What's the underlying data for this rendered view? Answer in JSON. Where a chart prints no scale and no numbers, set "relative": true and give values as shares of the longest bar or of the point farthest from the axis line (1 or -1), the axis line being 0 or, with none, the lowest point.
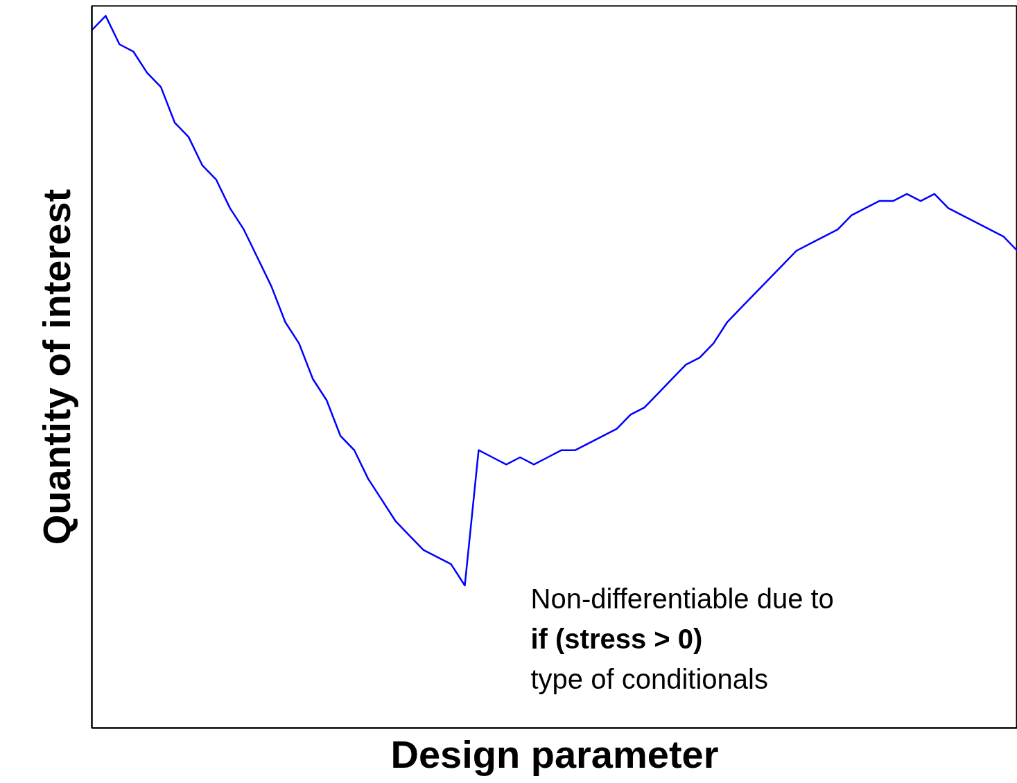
{
  "chart_data": {
    "type": "line",
    "relative": true,
    "xlabel": "Design parameter",
    "ylabel": "Quantity of interest",
    "categories": [
      null,
      null,
      null,
      null,
      null,
      null,
      null,
      null,
      null,
      null,
      null,
      null,
      null,
      null,
      null,
      null,
      null,
      null,
      null,
      null,
      null,
      null,
      null,
      null,
      null,
      null,
      null,
      null,
      null,
      null,
      null,
      null,
      null,
      null,
      null,
      null,
      null,
      null,
      null,
      null,
      null,
      null,
      null,
      null,
      null,
      null,
      null,
      null,
      null,
      null,
      null,
      null,
      null,
      null,
      null,
      null,
      null,
      null,
      null,
      null,
      null,
      null,
      null,
      null,
      null,
      null,
      null,
      null
    ],
    "series": [
      {
        "color": "#0000ff",
        "values": [
          0.98,
          1,
          0.96,
          0.95,
          0.92,
          0.9,
          0.85,
          0.83,
          0.79,
          0.77,
          0.73,
          0.7,
          0.66,
          0.62,
          0.57,
          0.54,
          0.49,
          0.46,
          0.41,
          0.39,
          0.35,
          0.32,
          0.29,
          0.27,
          0.25,
          0.24,
          0.23,
          0.2,
          0.39,
          0.38,
          0.37,
          0.38,
          0.37,
          0.38,
          0.39,
          0.39,
          0.4,
          0.41,
          0.42,
          0.44,
          0.45,
          0.47,
          0.49,
          0.51,
          0.52,
          0.54,
          0.57,
          0.59,
          0.61,
          0.63,
          0.65,
          0.67,
          0.68,
          0.69,
          0.7,
          0.72,
          0.73,
          0.74,
          0.74,
          0.75,
          0.74,
          0.75,
          0.73,
          0.72,
          0.71,
          0.7,
          0.69,
          0.67
        ]
      }
    ],
    "annotations": [
      "Non-differentiable due to",
      "if (stress > 0)",
      "type of conditionals"
    ],
    "grid": false,
    "marker": "none",
    "line_style": "solid"
  }
}
